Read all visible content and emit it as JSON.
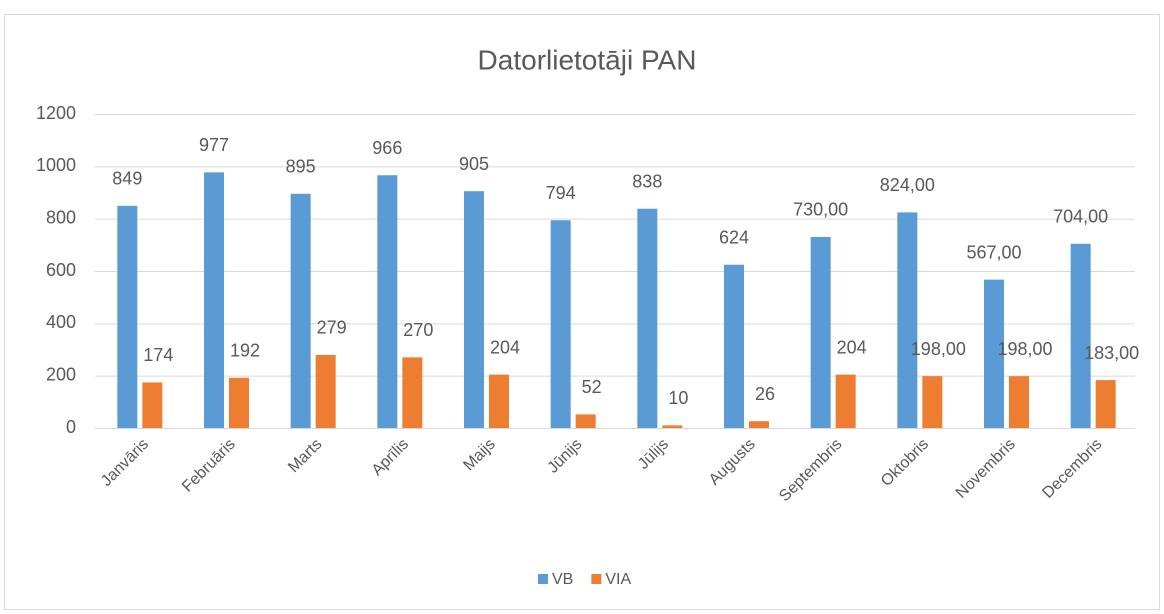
{
  "chart_data": {
    "type": "bar",
    "title": "Datorlietotāji  PAN",
    "categories": [
      "Janvāris",
      "Februāris",
      "Marts",
      "Aprīlis",
      "Maijs",
      "Jūnijs",
      "Jūlijs",
      "Augusts",
      "Septembris",
      "Oktobris",
      "Novembris",
      "Decembris"
    ],
    "series": [
      {
        "name": "VB",
        "color": "#5b9bd5",
        "values": [
          849,
          977,
          895,
          966,
          905,
          794,
          838,
          624,
          730,
          824,
          567,
          704
        ],
        "value_labels": [
          "849",
          "977",
          "895",
          "966",
          "905",
          "794",
          "838",
          "624",
          "730,00",
          "824,00",
          "567,00",
          "704,00"
        ]
      },
      {
        "name": "VIA",
        "color": "#ed7d31",
        "values": [
          174,
          192,
          279,
          270,
          204,
          52,
          10,
          26,
          204,
          198,
          198,
          183
        ],
        "value_labels": [
          "174",
          "192",
          "279",
          "270",
          "204",
          "52",
          "10",
          "26",
          "204",
          "198,00",
          "198,00",
          "183,00"
        ]
      }
    ],
    "ylim": [
      0,
      1200
    ],
    "yticks": [
      0,
      200,
      400,
      600,
      800,
      1000,
      1200
    ],
    "grid": true,
    "legend": "bottom"
  }
}
